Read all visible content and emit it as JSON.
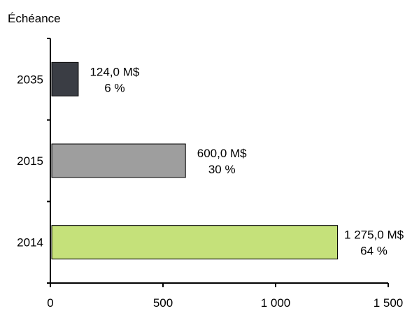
{
  "chart_data": {
    "type": "bar",
    "orientation": "horizontal",
    "ylabel": "Échéance",
    "xlabel": "",
    "xlim": [
      0,
      1500
    ],
    "x_ticks": [
      0,
      500,
      1000,
      1500
    ],
    "x_tick_labels": [
      "0",
      "500",
      "1 000",
      "1 500"
    ],
    "grid": false,
    "categories": [
      "2035",
      "2015",
      "2014"
    ],
    "values": [
      124,
      600,
      1275
    ],
    "value_labels": [
      "124,0 M$",
      "600,0 M$",
      "1 275,0 M$"
    ],
    "percent_labels": [
      "6 %",
      "30 %",
      "64 %"
    ],
    "colors": [
      "#3a3d44",
      "#9e9e9e",
      "#c5e17a"
    ]
  }
}
